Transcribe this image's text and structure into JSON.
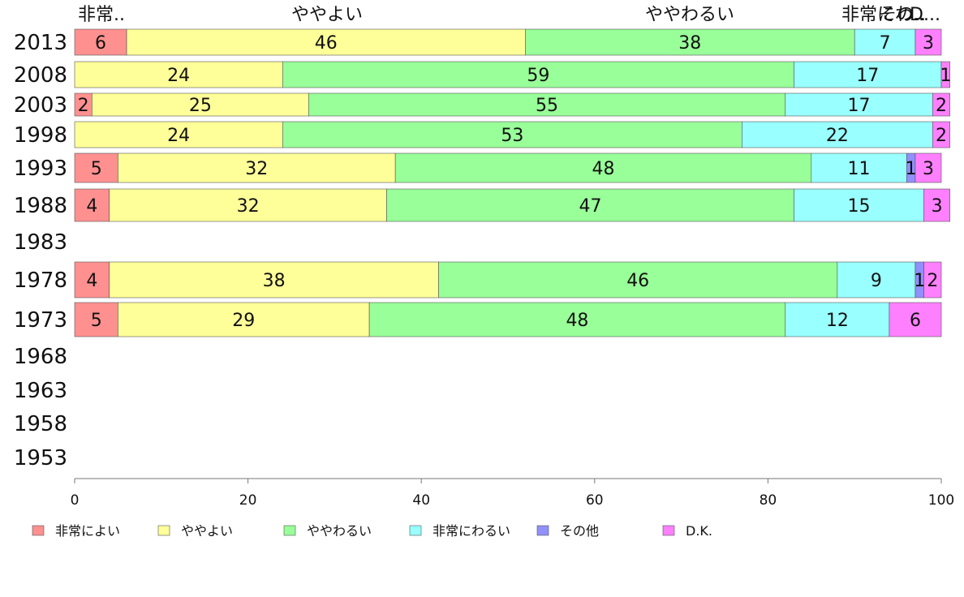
{
  "chart_data": {
    "type": "bar",
    "orientation": "horizontal",
    "stacked": true,
    "categories": [
      "2013",
      "2008",
      "2003",
      "1998",
      "1993",
      "1988",
      "1983",
      "1978",
      "1973",
      "1968",
      "1963",
      "1958",
      "1953"
    ],
    "series": [
      {
        "name": "非常によい",
        "color": "#ff9090",
        "values": [
          6,
          null,
          2,
          null,
          5,
          4,
          null,
          4,
          5,
          null,
          null,
          null,
          null
        ]
      },
      {
        "name": "ややよい",
        "color": "#ffff99",
        "values": [
          46,
          24,
          25,
          24,
          32,
          32,
          null,
          38,
          29,
          null,
          null,
          null,
          null
        ]
      },
      {
        "name": "ややわるい",
        "color": "#99ff99",
        "values": [
          38,
          59,
          55,
          53,
          48,
          47,
          null,
          46,
          48,
          null,
          null,
          null,
          null
        ]
      },
      {
        "name": "非常にわるい",
        "color": "#99ffff",
        "values": [
          7,
          17,
          17,
          22,
          11,
          15,
          null,
          9,
          12,
          null,
          null,
          null,
          null
        ]
      },
      {
        "name": "その他",
        "color": "#9090ff",
        "values": [
          null,
          null,
          null,
          null,
          1,
          null,
          null,
          1,
          null,
          null,
          null,
          null,
          null
        ]
      },
      {
        "name": "D.K.",
        "color": "#ff80ff",
        "values": [
          3,
          1,
          2,
          2,
          3,
          3,
          null,
          2,
          6,
          null,
          null,
          null,
          null
        ]
      }
    ],
    "top_labels": [
      "非常..",
      "ややよい",
      "ややわるい",
      "非常にわ..",
      "その..",
      "D..."
    ],
    "xlim": [
      0,
      100
    ],
    "xticks": [
      0,
      20,
      40,
      60,
      80,
      100
    ],
    "grid": false,
    "legend_position": "bottom"
  }
}
